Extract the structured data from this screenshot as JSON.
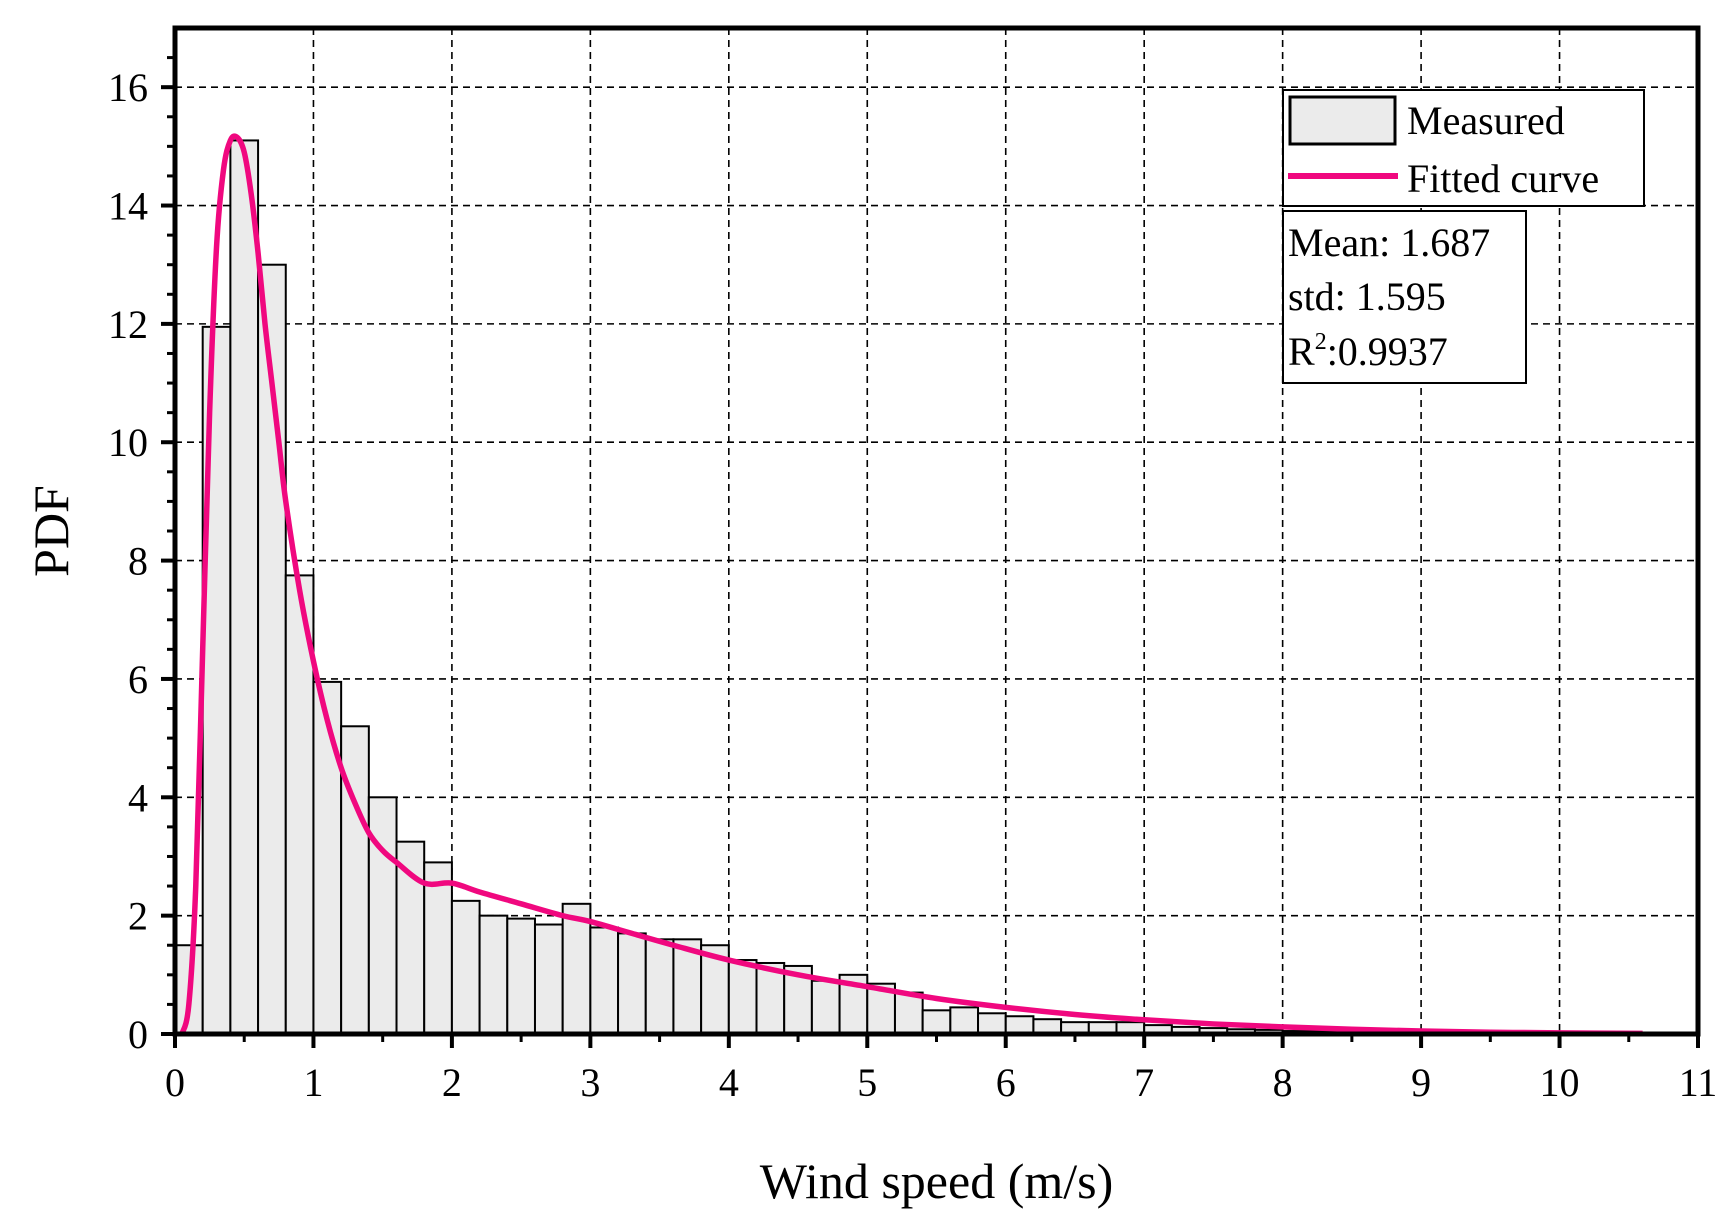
{
  "chart_data": {
    "type": "bar",
    "xlabel": "Wind speed (m/s)",
    "ylabel": "PDF",
    "xlim": [
      0,
      11
    ],
    "ylim": [
      0,
      17
    ],
    "xticks": [
      "0",
      "1",
      "2",
      "3",
      "4",
      "5",
      "6",
      "7",
      "8",
      "9",
      "10",
      "11"
    ],
    "yticks": [
      "0",
      "2",
      "4",
      "6",
      "8",
      "10",
      "12",
      "14",
      "16"
    ],
    "grid": true,
    "legend_position": "top-right",
    "bin_width": 0.2,
    "series": [
      {
        "name": "Measured",
        "type": "histogram",
        "color": "#ebebeb",
        "x": [
          0.1,
          0.3,
          0.5,
          0.7,
          0.9,
          1.1,
          1.3,
          1.5,
          1.7,
          1.9,
          2.1,
          2.3,
          2.5,
          2.7,
          2.9,
          3.1,
          3.3,
          3.5,
          3.7,
          3.9,
          4.1,
          4.3,
          4.5,
          4.7,
          4.9,
          5.1,
          5.3,
          5.5,
          5.7,
          5.9,
          6.1,
          6.3,
          6.5,
          6.7,
          6.9,
          7.1,
          7.3,
          7.5,
          7.7,
          7.9,
          8.1,
          8.3,
          8.5,
          8.7,
          8.9,
          9.1,
          9.3,
          9.5,
          9.7,
          9.9,
          10.1,
          10.3,
          10.5
        ],
        "values": [
          1.5,
          11.95,
          15.1,
          13.0,
          7.75,
          5.95,
          5.2,
          4.0,
          3.25,
          2.9,
          2.25,
          2.0,
          1.95,
          1.85,
          2.2,
          1.8,
          1.7,
          1.6,
          1.6,
          1.5,
          1.25,
          1.2,
          1.15,
          0.9,
          1.0,
          0.85,
          0.7,
          0.4,
          0.45,
          0.35,
          0.3,
          0.25,
          0.2,
          0.2,
          0.2,
          0.15,
          0.12,
          0.1,
          0.08,
          0.07,
          0.05,
          0.05,
          0.04,
          0.03,
          0.03,
          0.03,
          0.02,
          0.02,
          0.02,
          0.02,
          0.01,
          0.01,
          0.01
        ]
      },
      {
        "name": "Fitted curve",
        "type": "line",
        "color": "#f0087f",
        "x": [
          0.05,
          0.1,
          0.15,
          0.2,
          0.25,
          0.3,
          0.35,
          0.4,
          0.45,
          0.5,
          0.55,
          0.6,
          0.65,
          0.7,
          0.75,
          0.8,
          0.9,
          1.0,
          1.1,
          1.2,
          1.3,
          1.4,
          1.5,
          1.6,
          1.8,
          2.0,
          2.2,
          2.5,
          2.8,
          3.0,
          3.3,
          3.6,
          4.0,
          4.5,
          5.0,
          5.5,
          6.0,
          6.5,
          7.0,
          7.5,
          8.0,
          8.5,
          9.0,
          9.5,
          10.0,
          10.6
        ],
        "values": [
          0.0,
          0.5,
          2.5,
          6.5,
          10.5,
          13.3,
          14.6,
          15.1,
          15.15,
          14.9,
          14.2,
          13.2,
          12.0,
          11.0,
          10.0,
          9.0,
          7.5,
          6.3,
          5.3,
          4.5,
          3.9,
          3.4,
          3.1,
          2.9,
          2.55,
          2.55,
          2.4,
          2.2,
          2.0,
          1.9,
          1.7,
          1.5,
          1.25,
          1.0,
          0.8,
          0.6,
          0.45,
          0.33,
          0.24,
          0.17,
          0.12,
          0.08,
          0.05,
          0.03,
          0.02,
          0.01
        ]
      }
    ],
    "stats": {
      "mean": "Mean: 1.687",
      "std": "std: 1.595",
      "r2_prefix": "R",
      "r2_sup": "2",
      "r2_value": ":0.9937"
    }
  }
}
